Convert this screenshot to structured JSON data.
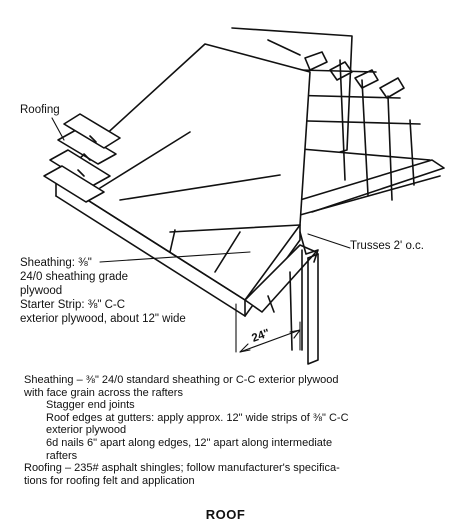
{
  "labels": {
    "roofing": "Roofing",
    "trusses": "Trusses 2' o.c.",
    "sheathing_lines": [
      "Sheathing: ⅜\"",
      "24/0 sheathing grade",
      "plywood",
      "Starter Strip: ⅜\" C-C",
      "exterior plywood, about 12\" wide"
    ],
    "dimension": "24\""
  },
  "notes": [
    {
      "text": "Sheathing – ⅜\" 24/0 standard sheathing or C-C exterior plywood",
      "indent": false
    },
    {
      "text": "with face grain across the rafters",
      "indent": false
    },
    {
      "text": "Stagger end joints",
      "indent": true
    },
    {
      "text": "Roof edges at gutters: apply approx. 12\" wide strips of ⅜\" C-C",
      "indent": true
    },
    {
      "text": "exterior plywood",
      "indent": true
    },
    {
      "text": "6d nails 6\" apart along edges, 12\" apart along intermediate",
      "indent": true
    },
    {
      "text": "rafters",
      "indent": true
    },
    {
      "text": "Roofing – 235# asphalt shingles; follow manufacturer's specifica-",
      "indent": false
    },
    {
      "text": "tions for roofing felt and application",
      "indent": false
    }
  ],
  "title": "ROOF"
}
